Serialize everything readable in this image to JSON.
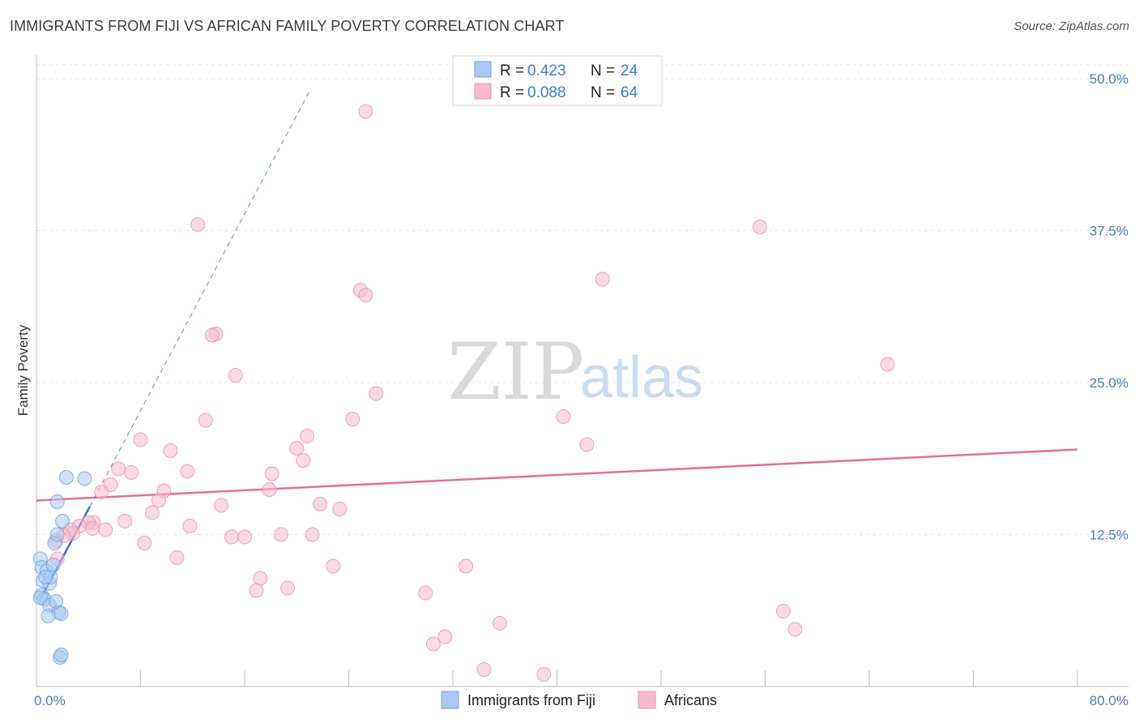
{
  "title": "IMMIGRANTS FROM FIJI VS AFRICAN FAMILY POVERTY CORRELATION CHART",
  "source": "Source: ZipAtlas.com",
  "watermark": {
    "zip": "ZIP",
    "atlas": "atlas"
  },
  "colors": {
    "fiji_fill": "#a9c8f0",
    "fiji_stroke": "#6f9fe0",
    "fiji_line": "#3a6fcf",
    "africa_fill": "#f7b9cd",
    "africa_stroke": "#ee8fb0",
    "africa_line": "#e56f98"
  },
  "legend": {
    "rows": [
      {
        "r_label": "R =",
        "r_value": "0.423",
        "n_label": "N =",
        "n_value": "24"
      },
      {
        "r_label": "R =",
        "r_value": "0.088",
        "n_label": "N =",
        "n_value": "64"
      }
    ]
  },
  "bottom_legend": [
    "Immigrants from Fiji",
    "Africans"
  ],
  "chart_data": {
    "type": "scatter",
    "xlabel": "",
    "ylabel": "Family Poverty",
    "xlim": [
      0,
      80
    ],
    "ylim": [
      0,
      50
    ],
    "x_tick_labels": [
      "0.0%",
      "80.0%"
    ],
    "y_ticks": [
      12.5,
      25.0,
      37.5,
      50.0
    ],
    "y_tick_labels": [
      "12.5%",
      "25.0%",
      "37.5%",
      "50.0%"
    ],
    "grid": true,
    "series": [
      {
        "name": "Immigrants from Fiji",
        "R": 0.423,
        "N": 24,
        "trend": {
          "x": [
            0.2,
            4.1
          ],
          "y": [
            7.0,
            14.8
          ]
        },
        "trend_dashed": {
          "x": [
            4.1,
            21.0
          ],
          "y": [
            14.8,
            49.0
          ]
        },
        "points": [
          [
            0.3,
            10.5
          ],
          [
            0.4,
            9.8
          ],
          [
            0.5,
            8.7
          ],
          [
            0.4,
            7.5
          ],
          [
            0.6,
            7.2
          ],
          [
            0.8,
            9.5
          ],
          [
            1.0,
            8.5
          ],
          [
            1.1,
            9.0
          ],
          [
            1.3,
            10.0
          ],
          [
            1.4,
            11.8
          ],
          [
            1.6,
            12.5
          ],
          [
            2.0,
            13.6
          ],
          [
            1.6,
            15.2
          ],
          [
            2.3,
            17.2
          ],
          [
            3.7,
            17.1
          ],
          [
            1.0,
            6.7
          ],
          [
            1.5,
            7.0
          ],
          [
            1.7,
            6.1
          ],
          [
            1.9,
            6.0
          ],
          [
            0.9,
            5.8
          ],
          [
            1.8,
            2.4
          ],
          [
            1.9,
            2.6
          ],
          [
            0.3,
            7.3
          ],
          [
            0.7,
            9.0
          ]
        ]
      },
      {
        "name": "Africans",
        "R": 0.088,
        "N": 64,
        "trend": {
          "x": [
            0,
            80
          ],
          "y": [
            15.3,
            19.5
          ]
        },
        "points": [
          [
            25.3,
            47.3
          ],
          [
            12.4,
            38.0
          ],
          [
            55.6,
            37.8
          ],
          [
            43.5,
            33.5
          ],
          [
            24.9,
            32.6
          ],
          [
            25.3,
            32.2
          ],
          [
            13.8,
            29.0
          ],
          [
            13.5,
            28.9
          ],
          [
            15.3,
            25.6
          ],
          [
            65.4,
            26.5
          ],
          [
            26.1,
            24.1
          ],
          [
            40.5,
            22.2
          ],
          [
            13.0,
            21.9
          ],
          [
            24.3,
            22.0
          ],
          [
            20.8,
            20.6
          ],
          [
            8.0,
            20.3
          ],
          [
            20.0,
            19.6
          ],
          [
            10.3,
            19.4
          ],
          [
            42.3,
            19.9
          ],
          [
            20.5,
            18.6
          ],
          [
            6.3,
            17.9
          ],
          [
            7.3,
            17.6
          ],
          [
            11.6,
            17.7
          ],
          [
            18.1,
            17.5
          ],
          [
            5.7,
            16.6
          ],
          [
            9.8,
            16.1
          ],
          [
            17.9,
            16.2
          ],
          [
            5.0,
            16.0
          ],
          [
            9.4,
            15.3
          ],
          [
            14.2,
            14.9
          ],
          [
            21.8,
            15.0
          ],
          [
            23.3,
            14.6
          ],
          [
            8.9,
            14.3
          ],
          [
            4.4,
            13.5
          ],
          [
            6.8,
            13.6
          ],
          [
            4.0,
            13.5
          ],
          [
            3.3,
            13.2
          ],
          [
            11.8,
            13.2
          ],
          [
            5.3,
            12.9
          ],
          [
            4.3,
            13.0
          ],
          [
            2.6,
            12.9
          ],
          [
            2.8,
            12.6
          ],
          [
            2.1,
            12.4
          ],
          [
            1.5,
            12.0
          ],
          [
            15.0,
            12.3
          ],
          [
            16.0,
            12.3
          ],
          [
            18.8,
            12.5
          ],
          [
            21.2,
            12.5
          ],
          [
            8.3,
            11.8
          ],
          [
            10.8,
            10.6
          ],
          [
            22.8,
            9.9
          ],
          [
            33.0,
            9.9
          ],
          [
            17.2,
            8.9
          ],
          [
            16.9,
            7.9
          ],
          [
            19.3,
            8.1
          ],
          [
            29.9,
            7.7
          ],
          [
            57.4,
            6.2
          ],
          [
            35.6,
            5.2
          ],
          [
            58.3,
            4.7
          ],
          [
            31.4,
            4.1
          ],
          [
            30.5,
            3.5
          ],
          [
            34.4,
            1.4
          ],
          [
            39.0,
            1.0
          ],
          [
            1.6,
            10.5
          ]
        ]
      }
    ]
  }
}
